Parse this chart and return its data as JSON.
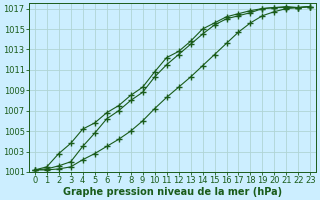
{
  "title": "",
  "xlabel": "Graphe pression niveau de la mer (hPa)",
  "ylabel": "",
  "bg_color": "#cceeff",
  "grid_color": "#b0d4d4",
  "line_color": "#1a5c1a",
  "xlim": [
    -0.5,
    23.5
  ],
  "ylim": [
    1001,
    1017.5
  ],
  "yticks": [
    1001,
    1003,
    1005,
    1007,
    1009,
    1011,
    1013,
    1015,
    1017
  ],
  "xticks": [
    0,
    1,
    2,
    3,
    4,
    5,
    6,
    7,
    8,
    9,
    10,
    11,
    12,
    13,
    14,
    15,
    16,
    17,
    18,
    19,
    20,
    21,
    22,
    23
  ],
  "series1": [
    1001.2,
    1001.5,
    1002.8,
    1003.8,
    1005.2,
    1005.8,
    1006.8,
    1007.5,
    1008.5,
    1009.3,
    1010.8,
    1012.2,
    1012.8,
    1013.8,
    1015.0,
    1015.6,
    1016.2,
    1016.5,
    1016.8,
    1017.0,
    1017.1,
    1017.2,
    1017.1,
    1017.2
  ],
  "series2": [
    1001.2,
    1001.3,
    1001.6,
    1002.0,
    1003.5,
    1004.8,
    1006.2,
    1007.0,
    1008.0,
    1008.8,
    1010.3,
    1011.5,
    1012.5,
    1013.5,
    1014.5,
    1015.4,
    1016.0,
    1016.3,
    1016.6,
    1017.0,
    1017.1,
    1017.1,
    1017.1,
    1017.2
  ],
  "series3": [
    1001.2,
    1001.2,
    1001.3,
    1001.5,
    1002.2,
    1002.8,
    1003.5,
    1004.2,
    1005.0,
    1006.0,
    1007.2,
    1008.3,
    1009.3,
    1010.3,
    1011.4,
    1012.5,
    1013.6,
    1014.7,
    1015.6,
    1016.3,
    1016.7,
    1017.0,
    1017.1,
    1017.2
  ]
}
